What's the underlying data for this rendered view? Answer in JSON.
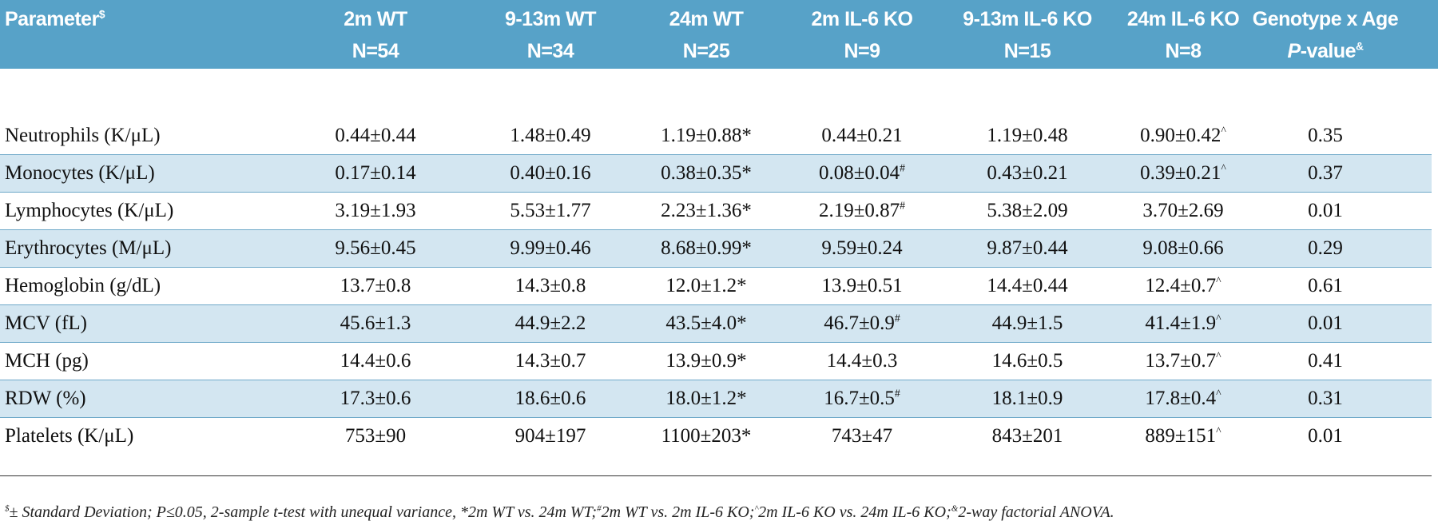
{
  "table": {
    "header": [
      {
        "lines": [
          "Parameter"
        ],
        "sup": "$"
      },
      {
        "lines": [
          "2m WT",
          "N=54"
        ]
      },
      {
        "lines": [
          "9-13m WT",
          "N=34"
        ]
      },
      {
        "lines": [
          "24m WT",
          "N=25"
        ]
      },
      {
        "lines": [
          "2m IL-6 KO",
          "N=9"
        ]
      },
      {
        "lines": [
          "9-13m IL-6 KO",
          "N=15"
        ]
      },
      {
        "lines": [
          "24m IL-6 KO",
          "N=8"
        ]
      },
      {
        "lines": [
          "Genotype x Age"
        ],
        "italic": "P",
        "text": "-value",
        "sup": "&"
      }
    ],
    "rows": [
      [
        "Neutrophils (K/μL)",
        "0.44±0.44",
        "1.48±0.49",
        "1.19±0.88*",
        "0.44±0.21",
        "1.19±0.48",
        "0.90±0.42^",
        "0.35"
      ],
      [
        "Monocytes (K/μL)",
        "0.17±0.14",
        "0.40±0.16",
        "0.38±0.35*",
        "0.08±0.04#",
        "0.43±0.21",
        "0.39±0.21^",
        "0.37"
      ],
      [
        "Lymphocytes (K/μL)",
        "3.19±1.93",
        "5.53±1.77",
        "2.23±1.36*",
        "2.19±0.87#",
        "5.38±2.09",
        "3.70±2.69",
        "0.01"
      ],
      [
        "Erythrocytes (M/μL)",
        "9.56±0.45",
        "9.99±0.46",
        "8.68±0.99*",
        "9.59±0.24",
        "9.87±0.44",
        "9.08±0.66",
        "0.29"
      ],
      [
        "Hemoglobin (g/dL)",
        "13.7±0.8",
        "14.3±0.8",
        "12.0±1.2*",
        "13.9±0.51",
        "14.4±0.44",
        "12.4±0.7^",
        "0.61"
      ],
      [
        "MCV (fL)",
        "45.6±1.3",
        "44.9±2.2",
        "43.5±4.0*",
        "46.7±0.9#",
        "44.9±1.5",
        "41.4±1.9^",
        "0.01"
      ],
      [
        "MCH (pg)",
        "14.4±0.6",
        "14.3±0.7",
        "13.9±0.9*",
        "14.4±0.3",
        "14.6±0.5",
        "13.7±0.7^",
        "0.41"
      ],
      [
        "RDW (%)",
        "17.3±0.6",
        "18.6±0.6",
        "18.0±1.2*",
        "16.7±0.5#",
        "18.1±0.9",
        "17.8±0.4^",
        "0.31"
      ],
      [
        "Platelets (K/μL)",
        "753±90",
        "904±197",
        "1100±203*",
        "743±47",
        "843±201",
        "889±151^",
        "0.01"
      ]
    ]
  },
  "footnote": [
    {
      "sup": "$"
    },
    {
      "text": "± Standard Deviation; P≤0.05, 2-sample t-test with unequal variance, *2m WT vs. 24m WT;"
    },
    {
      "sup": "#"
    },
    {
      "text": "2m WT vs. 2m IL-6 KO;"
    },
    {
      "sup": "^"
    },
    {
      "text": "2m IL-6 KO vs. 24m IL-6 KO;"
    },
    {
      "sup": "&"
    },
    {
      "text": "2-way factorial ANOVA."
    }
  ]
}
